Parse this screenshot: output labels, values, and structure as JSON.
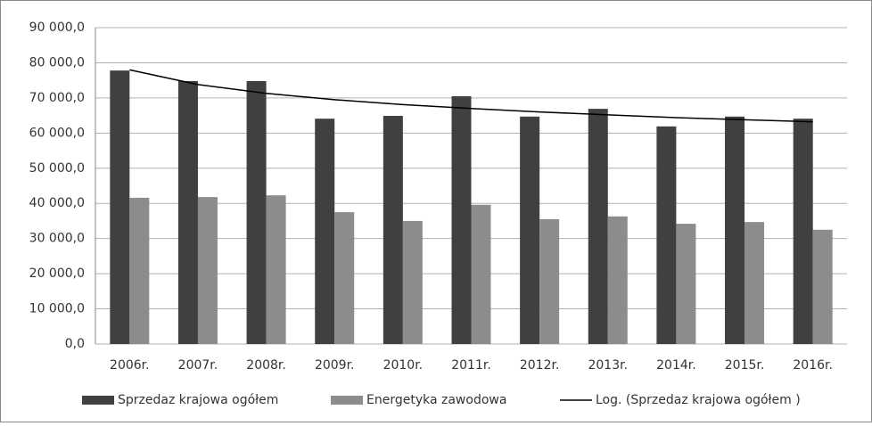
{
  "chart_data": {
    "type": "bar",
    "categories": [
      "2006r.",
      "2007r.",
      "2008r.",
      "2009r.",
      "2010r.",
      "2011r.",
      "2012r.",
      "2013r.",
      "2014r.",
      "2015r.",
      "2016r."
    ],
    "series": [
      {
        "name": "Sprzedaz krajowa ogółem",
        "color": "#404040",
        "values": [
          77800,
          74800,
          74800,
          64100,
          64900,
          70500,
          64700,
          66900,
          61900,
          64700,
          64100
        ]
      },
      {
        "name": "Energetyka zawodowa",
        "color": "#8c8c8c",
        "values": [
          41600,
          41800,
          42300,
          37500,
          35000,
          39600,
          35500,
          36300,
          34200,
          34700,
          32500
        ]
      },
      {
        "name": "Log. (Sprzedaz krajowa ogółem )",
        "color": "#000000",
        "type": "line",
        "values": [
          78000,
          73800,
          71300,
          69500,
          68100,
          67000,
          66000,
          65200,
          64400,
          63800,
          63200
        ]
      }
    ],
    "ylim": [
      0,
      90000
    ],
    "yticks": [
      {
        "value": 0,
        "label": "0,0"
      },
      {
        "value": 10000,
        "label": "10 000,0"
      },
      {
        "value": 20000,
        "label": "20 000,0"
      },
      {
        "value": 30000,
        "label": "30 000,0"
      },
      {
        "value": 40000,
        "label": "40 000,0"
      },
      {
        "value": 50000,
        "label": "50 000,0"
      },
      {
        "value": 60000,
        "label": "60 000,0"
      },
      {
        "value": 70000,
        "label": "70 000,0"
      },
      {
        "value": 80000,
        "label": "80 000,0"
      },
      {
        "value": 90000,
        "label": "90 000,0"
      }
    ],
    "grid": true,
    "legend": "bottom"
  }
}
